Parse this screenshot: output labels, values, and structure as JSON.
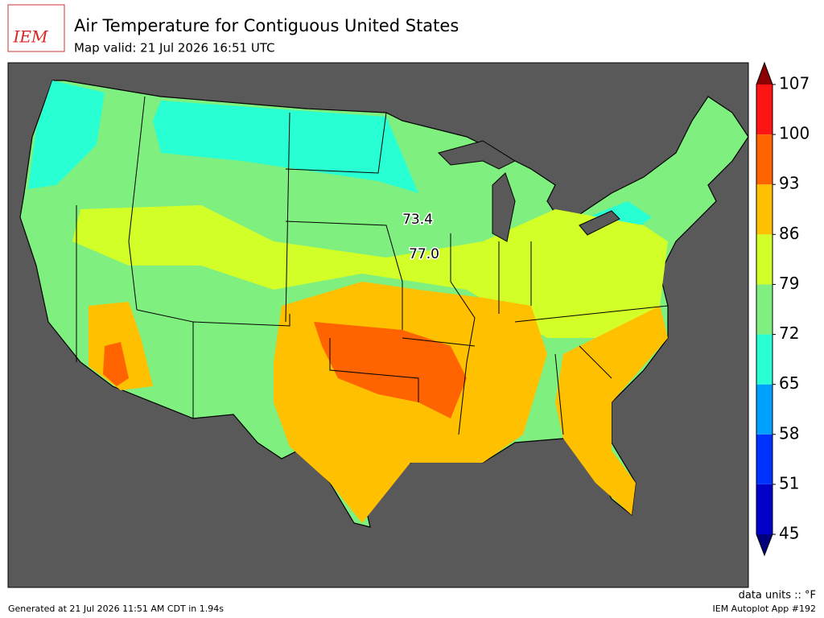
{
  "header": {
    "logo": "IEM",
    "title": "Air Temperature for Contiguous United States",
    "subtitle": "Map valid: 21 Jul 2026 16:51 UTC"
  },
  "map": {
    "labels": [
      "73.4",
      "77.0"
    ]
  },
  "colorbar": {
    "levels": [
      45,
      51,
      58,
      65,
      72,
      79,
      86,
      93,
      100,
      107
    ],
    "colors": [
      "#0000c8",
      "#0032ff",
      "#00a0ff",
      "#28ffd2",
      "#7ff07f",
      "#d2ff28",
      "#ffc000",
      "#ff6400",
      "#ff1414"
    ],
    "under_color": "#00007a",
    "over_color": "#8b0000",
    "units": "data units :: °F"
  },
  "footer": {
    "generated": "Generated at 21 Jul 2026 11:51 AM CDT in 1.94s",
    "app": "IEM Autoplot App #192"
  }
}
